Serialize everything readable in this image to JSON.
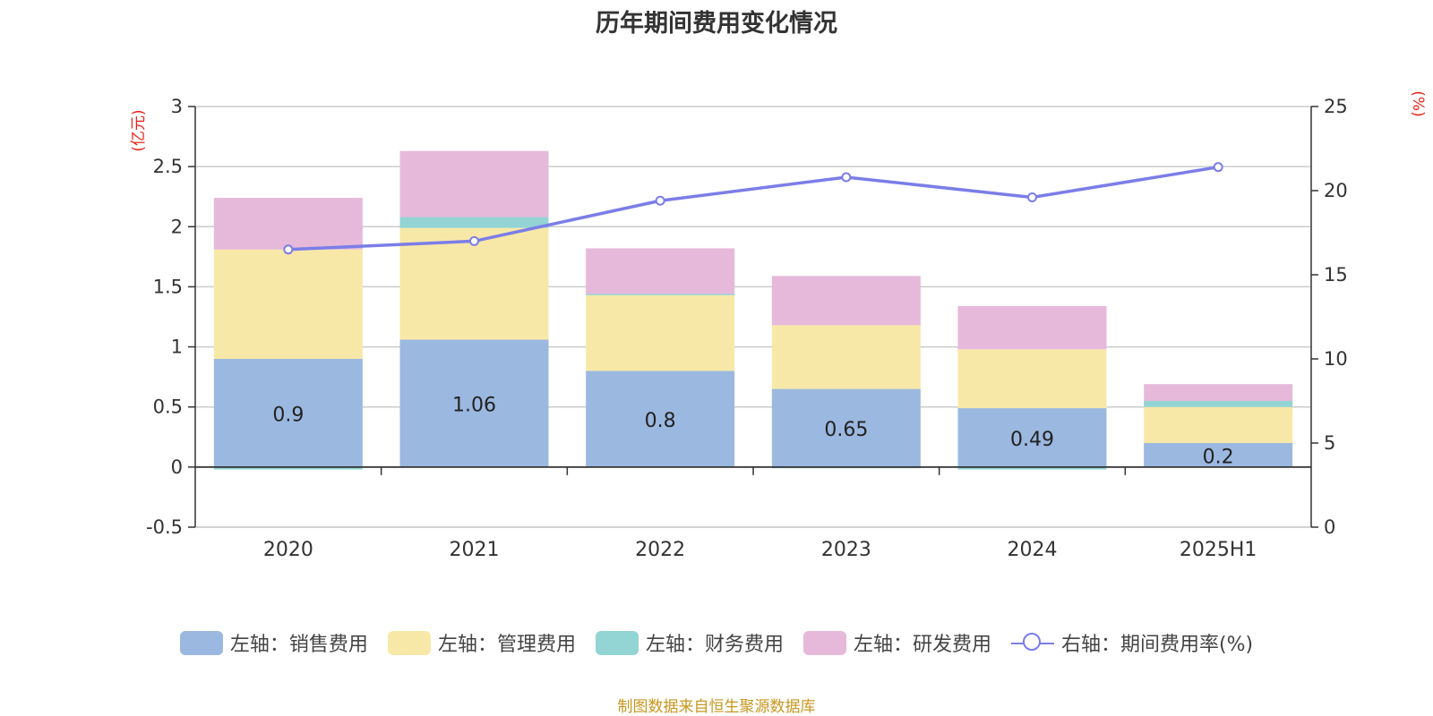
{
  "chart_data": {
    "type": "bar",
    "title": "历年期间费用变化情况",
    "categories": [
      "2020",
      "2021",
      "2022",
      "2023",
      "2024",
      "2025H1"
    ],
    "stacked": true,
    "left_axis": {
      "unit_label": "(亿元)",
      "ylim": [
        -0.5,
        3
      ],
      "ticks": [
        "-0.5",
        "0",
        "0.5",
        "1",
        "1.5",
        "2",
        "2.5",
        "3"
      ]
    },
    "right_axis": {
      "unit_label": "(%)",
      "ylim": [
        0,
        25
      ],
      "ticks": [
        "0",
        "5",
        "10",
        "15",
        "20",
        "25"
      ]
    },
    "grid": true,
    "legend_position": "bottom",
    "series": [
      {
        "name": "左轴：销售费用",
        "axis": "left",
        "type": "bar",
        "color": "#9bb8e0",
        "values": [
          0.9,
          1.06,
          0.8,
          0.65,
          0.49,
          0.2
        ],
        "data_labels": [
          "0.9",
          "1.06",
          "0.8",
          "0.65",
          "0.49",
          "0.2"
        ]
      },
      {
        "name": "左轴：管理费用",
        "axis": "left",
        "type": "bar",
        "color": "#f8e8a8",
        "values": [
          0.91,
          0.93,
          0.63,
          0.53,
          0.49,
          0.3
        ]
      },
      {
        "name": "左轴：财务费用",
        "axis": "left",
        "type": "bar",
        "color": "#93d4d4",
        "values": [
          -0.02,
          0.09,
          0.01,
          -0.01,
          -0.02,
          0.05
        ]
      },
      {
        "name": "左轴：研发费用",
        "axis": "left",
        "type": "bar",
        "color": "#e6b9da",
        "values": [
          0.43,
          0.55,
          0.38,
          0.41,
          0.36,
          0.14
        ]
      },
      {
        "name": "右轴：期间费用率(%)",
        "axis": "right",
        "type": "line",
        "color": "#7b7de8",
        "values": [
          16.5,
          17.0,
          19.4,
          20.8,
          19.6,
          21.4
        ]
      }
    ],
    "source": "制图数据来自恒生聚源数据库"
  }
}
